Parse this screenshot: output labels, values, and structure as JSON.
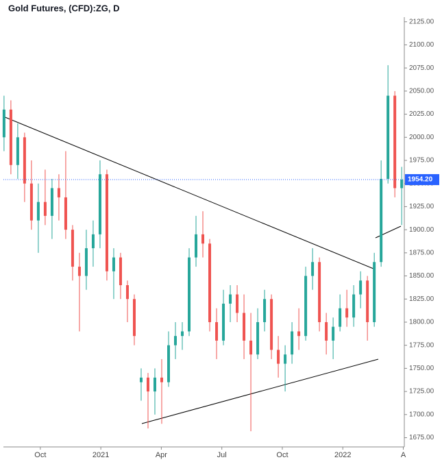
{
  "chart_data": {
    "type": "candlestick",
    "title": "Gold Futures, (CFD):ZG, D",
    "x": [
      8.2,
      8.54,
      8.88,
      9.22,
      9.56,
      9.9,
      10.24,
      10.58,
      10.92,
      11.26,
      11.6,
      11.94,
      12.28,
      12.62,
      12.96,
      13.3,
      13.64,
      13.98,
      14.32,
      14.66,
      15.0,
      15.34,
      15.68,
      16.02,
      16.36,
      16.7,
      17.04,
      17.38,
      17.72,
      18.06,
      18.4,
      18.74,
      19.08,
      19.42,
      19.76,
      20.1,
      20.44,
      20.78,
      21.12,
      21.46,
      21.8,
      22.14,
      22.48,
      22.82,
      23.16,
      23.5,
      23.84,
      24.18,
      24.52,
      24.86,
      25.2,
      25.54,
      25.88,
      26.22,
      26.56,
      26.9,
      27.24,
      27.58,
      27.92
    ],
    "open": [
      2000,
      2030,
      1970,
      2000,
      1950,
      1910,
      1930,
      1915,
      1945,
      1935,
      1900,
      1860,
      1850,
      1880,
      1895,
      1960,
      1855,
      1870,
      1840,
      1825,
      1735,
      1740,
      1725,
      1740,
      1735,
      1775,
      1785,
      1790,
      1870,
      1895,
      1885,
      1800,
      1780,
      1820,
      1830,
      1810,
      1780,
      1765,
      1800,
      1825,
      1770,
      1755,
      1765,
      1790,
      1785,
      1850,
      1865,
      1800,
      1780,
      1795,
      1815,
      1805,
      1830,
      1845,
      1800,
      1865,
      1955,
      2045,
      1945
    ],
    "high": [
      2045,
      2040,
      2015,
      2005,
      1975,
      1950,
      1965,
      1955,
      1960,
      1985,
      1905,
      1875,
      1900,
      1910,
      1975,
      1965,
      1880,
      1875,
      1845,
      1830,
      1750,
      1745,
      1750,
      1760,
      1790,
      1800,
      1800,
      1880,
      1915,
      1920,
      1890,
      1815,
      1835,
      1840,
      1840,
      1830,
      1810,
      1815,
      1835,
      1830,
      1785,
      1775,
      1800,
      1815,
      1860,
      1880,
      1870,
      1810,
      1805,
      1830,
      1835,
      1840,
      1855,
      1850,
      1875,
      1975,
      2078,
      2050,
      1968
    ],
    "low": [
      1985,
      1960,
      1955,
      1930,
      1900,
      1875,
      1905,
      1890,
      1910,
      1890,
      1845,
      1790,
      1835,
      1860,
      1880,
      1845,
      1825,
      1825,
      1800,
      1775,
      1715,
      1685,
      1700,
      1690,
      1730,
      1760,
      1770,
      1785,
      1860,
      1870,
      1790,
      1760,
      1775,
      1800,
      1800,
      1760,
      1682,
      1760,
      1790,
      1760,
      1740,
      1725,
      1755,
      1770,
      1780,
      1835,
      1790,
      1765,
      1760,
      1790,
      1795,
      1795,
      1815,
      1780,
      1795,
      1860,
      1950,
      1935,
      1905
    ],
    "close": [
      2030,
      1970,
      2000,
      1950,
      1910,
      1930,
      1915,
      1945,
      1935,
      1900,
      1860,
      1850,
      1880,
      1895,
      1960,
      1855,
      1870,
      1840,
      1825,
      1785,
      1740,
      1725,
      1740,
      1735,
      1775,
      1785,
      1790,
      1870,
      1895,
      1885,
      1800,
      1780,
      1820,
      1830,
      1810,
      1780,
      1765,
      1800,
      1825,
      1770,
      1755,
      1765,
      1790,
      1785,
      1850,
      1865,
      1800,
      1780,
      1795,
      1815,
      1805,
      1830,
      1845,
      1800,
      1865,
      1955,
      2045,
      1945,
      1954.2
    ],
    "up_color": "#26a69a",
    "down_color": "#ef5350",
    "last_price": {
      "value": 1954.2,
      "label": "1954.20",
      "color": "#2962ff"
    },
    "xlim": [
      8.17,
      28.05
    ],
    "xticks": [
      {
        "value": 10,
        "label": "Oct"
      },
      {
        "value": 13,
        "label": "2021"
      },
      {
        "value": 16,
        "label": "Apr"
      },
      {
        "value": 19,
        "label": "Jul"
      },
      {
        "value": 22,
        "label": "Oct"
      },
      {
        "value": 25,
        "label": "2022"
      },
      {
        "value": 28,
        "label": "A"
      }
    ],
    "ylim": [
      1665,
      2130
    ],
    "yticks": [
      {
        "value": 1675,
        "label": "1675.00"
      },
      {
        "value": 1700,
        "label": "1700.00"
      },
      {
        "value": 1725,
        "label": "1725.00"
      },
      {
        "value": 1750,
        "label": "1750.00"
      },
      {
        "value": 1775,
        "label": "1775.00"
      },
      {
        "value": 1800,
        "label": "1800.00"
      },
      {
        "value": 1825,
        "label": "1825.00"
      },
      {
        "value": 1850,
        "label": "1850.00"
      },
      {
        "value": 1875,
        "label": "1875.00"
      },
      {
        "value": 1900,
        "label": "1900.00"
      },
      {
        "value": 1925,
        "label": "1925.00"
      },
      {
        "value": 1950,
        "label": "1950.00"
      },
      {
        "value": 1975,
        "label": "1975.00"
      },
      {
        "value": 2000,
        "label": "2000.00"
      },
      {
        "value": 2025,
        "label": "2025.00"
      },
      {
        "value": 2050,
        "label": "2050.00"
      },
      {
        "value": 2075,
        "label": "2075.00"
      },
      {
        "value": 2100,
        "label": "2100.00"
      },
      {
        "value": 2125,
        "label": "2125.00"
      }
    ]
  }
}
